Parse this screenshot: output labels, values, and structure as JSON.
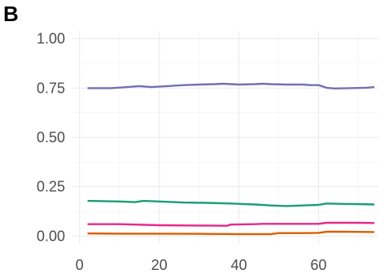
{
  "panel_label": "B",
  "chart_data": {
    "type": "line",
    "title": "",
    "xlabel": "",
    "ylabel": "",
    "xlim": [
      -2,
      75
    ],
    "ylim": [
      -0.04,
      1.04
    ],
    "x_ticks": [
      0,
      20,
      40,
      60
    ],
    "x_tick_labels": [
      "0",
      "20",
      "40",
      "60"
    ],
    "y_ticks": [
      0.0,
      0.25,
      0.5,
      0.75,
      1.0
    ],
    "y_tick_labels": [
      "0.00",
      "0.25",
      "0.50",
      "0.75",
      "1.00"
    ],
    "grid": true,
    "legend": "none",
    "series": [
      {
        "color": "#7570b3",
        "x": [
          2,
          8,
          12,
          15,
          18,
          22,
          26,
          30,
          34,
          36,
          38,
          40,
          44,
          46,
          48,
          52,
          56,
          58,
          60,
          62,
          64,
          68,
          72,
          74
        ],
        "values": [
          0.75,
          0.75,
          0.755,
          0.76,
          0.755,
          0.76,
          0.765,
          0.768,
          0.77,
          0.772,
          0.77,
          0.768,
          0.77,
          0.772,
          0.77,
          0.768,
          0.768,
          0.765,
          0.765,
          0.752,
          0.748,
          0.75,
          0.752,
          0.755
        ]
      },
      {
        "color": "#1b9e77",
        "x": [
          2,
          10,
          14,
          16,
          20,
          26,
          32,
          38,
          44,
          48,
          52,
          56,
          60,
          62,
          66,
          70,
          74
        ],
        "values": [
          0.178,
          0.175,
          0.172,
          0.178,
          0.175,
          0.17,
          0.168,
          0.165,
          0.16,
          0.155,
          0.152,
          0.155,
          0.158,
          0.165,
          0.163,
          0.162,
          0.16
        ]
      },
      {
        "color": "#e7298a",
        "x": [
          2,
          10,
          20,
          30,
          37,
          38,
          44,
          46,
          50,
          56,
          60,
          62,
          66,
          70,
          74
        ],
        "values": [
          0.06,
          0.06,
          0.055,
          0.053,
          0.052,
          0.058,
          0.06,
          0.062,
          0.062,
          0.062,
          0.062,
          0.067,
          0.067,
          0.067,
          0.066
        ]
      },
      {
        "color": "#d95f02",
        "x": [
          2,
          10,
          20,
          30,
          40,
          48,
          50,
          56,
          60,
          62,
          66,
          70,
          74
        ],
        "values": [
          0.013,
          0.012,
          0.012,
          0.011,
          0.01,
          0.01,
          0.015,
          0.015,
          0.016,
          0.022,
          0.022,
          0.021,
          0.02
        ]
      }
    ]
  }
}
